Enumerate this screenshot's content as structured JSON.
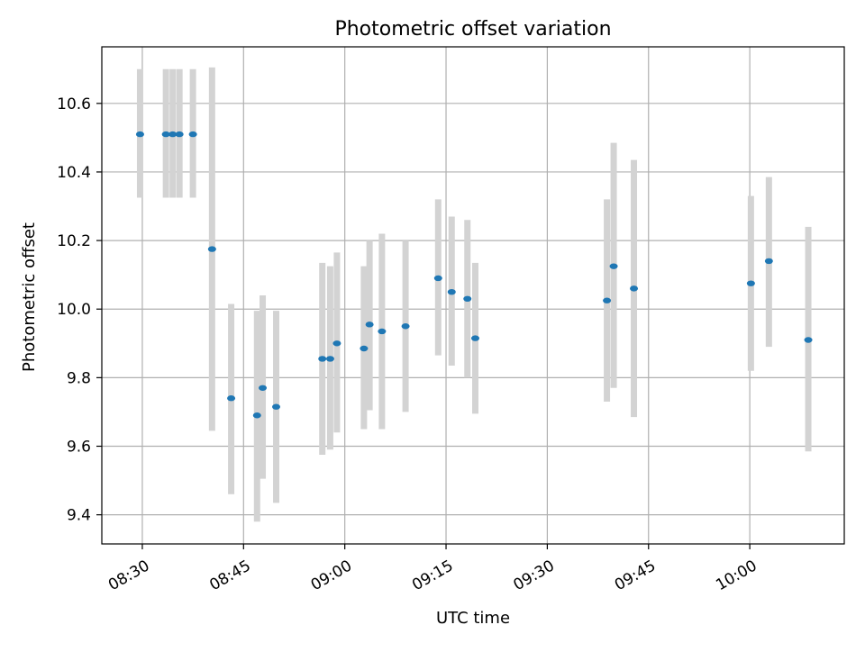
{
  "chart_data": {
    "type": "scatter",
    "title": "Photometric offset variation",
    "xlabel": "UTC time",
    "ylabel": "Photometric offset",
    "x_axis": "time (UTC, HH:MM)",
    "xlim": [
      "08:24",
      "10:14"
    ],
    "ylim": [
      9.315,
      10.765
    ],
    "xticks": [
      "08:30",
      "08:45",
      "09:00",
      "09:15",
      "09:30",
      "09:45",
      "10:00"
    ],
    "yticks": [
      "9.4",
      "9.6",
      "9.8",
      "10.0",
      "10.2",
      "10.4",
      "10.6"
    ],
    "grid": true,
    "legend": "none",
    "series": [
      {
        "marker_color": "#1f77b4",
        "errorbar_color": "#d3d3d3",
        "points": [
          {
            "x": "08:29:40",
            "y": 10.51,
            "ylo": 10.325,
            "yhi": 10.7
          },
          {
            "x": "08:33:30",
            "y": 10.51,
            "ylo": 10.325,
            "yhi": 10.7
          },
          {
            "x": "08:34:30",
            "y": 10.51,
            "ylo": 10.325,
            "yhi": 10.7
          },
          {
            "x": "08:35:30",
            "y": 10.51,
            "ylo": 10.325,
            "yhi": 10.7
          },
          {
            "x": "08:37:30",
            "y": 10.51,
            "ylo": 10.325,
            "yhi": 10.7
          },
          {
            "x": "08:40:20",
            "y": 10.175,
            "ylo": 9.645,
            "yhi": 10.705
          },
          {
            "x": "08:43:10",
            "y": 9.74,
            "ylo": 9.46,
            "yhi": 10.015
          },
          {
            "x": "08:47:00",
            "y": 9.69,
            "ylo": 9.38,
            "yhi": 9.995
          },
          {
            "x": "08:47:50",
            "y": 9.77,
            "ylo": 9.505,
            "yhi": 10.04
          },
          {
            "x": "08:49:50",
            "y": 9.715,
            "ylo": 9.435,
            "yhi": 9.995
          },
          {
            "x": "08:56:40",
            "y": 9.855,
            "ylo": 9.575,
            "yhi": 10.135
          },
          {
            "x": "08:57:50",
            "y": 9.855,
            "ylo": 9.59,
            "yhi": 10.125
          },
          {
            "x": "08:58:50",
            "y": 9.9,
            "ylo": 9.64,
            "yhi": 10.165
          },
          {
            "x": "09:02:50",
            "y": 9.885,
            "ylo": 9.65,
            "yhi": 10.125
          },
          {
            "x": "09:03:40",
            "y": 9.955,
            "ylo": 9.705,
            "yhi": 10.2
          },
          {
            "x": "09:05:30",
            "y": 9.935,
            "ylo": 9.65,
            "yhi": 10.22
          },
          {
            "x": "09:09:00",
            "y": 9.95,
            "ylo": 9.7,
            "yhi": 10.2
          },
          {
            "x": "09:13:50",
            "y": 10.09,
            "ylo": 9.865,
            "yhi": 10.32
          },
          {
            "x": "09:15:50",
            "y": 10.05,
            "ylo": 9.835,
            "yhi": 10.27
          },
          {
            "x": "09:18:10",
            "y": 10.03,
            "ylo": 9.8,
            "yhi": 10.26
          },
          {
            "x": "09:19:20",
            "y": 9.915,
            "ylo": 9.695,
            "yhi": 10.135
          },
          {
            "x": "09:38:50",
            "y": 10.025,
            "ylo": 9.73,
            "yhi": 10.32
          },
          {
            "x": "09:39:50",
            "y": 10.125,
            "ylo": 9.77,
            "yhi": 10.485
          },
          {
            "x": "09:42:50",
            "y": 10.06,
            "ylo": 9.685,
            "yhi": 10.435
          },
          {
            "x": "10:00:10",
            "y": 10.075,
            "ylo": 9.82,
            "yhi": 10.33
          },
          {
            "x": "10:02:50",
            "y": 10.14,
            "ylo": 9.89,
            "yhi": 10.385
          },
          {
            "x": "10:08:40",
            "y": 9.91,
            "ylo": 9.585,
            "yhi": 10.24
          }
        ]
      }
    ]
  }
}
